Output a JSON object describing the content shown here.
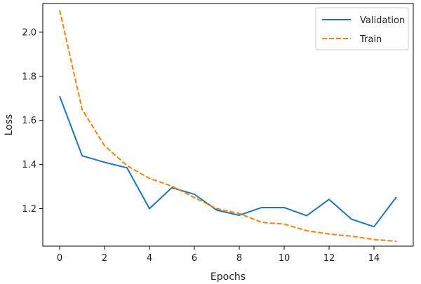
{
  "chart_data": {
    "type": "line",
    "title": "",
    "xlabel": "Epochs",
    "ylabel": "Loss",
    "xlim": [
      -0.75,
      15.75
    ],
    "ylim": [
      1.03,
      2.13
    ],
    "xticks": [
      0,
      2,
      4,
      6,
      8,
      10,
      12,
      14
    ],
    "yticks": [
      1.2,
      1.4,
      1.6,
      1.8,
      2.0
    ],
    "xtick_labels": [
      "0",
      "2",
      "4",
      "6",
      "8",
      "10",
      "12",
      "14"
    ],
    "ytick_labels": [
      "1.2",
      "1.4",
      "1.6",
      "1.8",
      "2.0"
    ],
    "grid": false,
    "legend_position": "top-right",
    "x": [
      0,
      1,
      2,
      3,
      4,
      5,
      6,
      7,
      8,
      9,
      10,
      11,
      12,
      13,
      14,
      15
    ],
    "series": [
      {
        "name": "Validation",
        "color": "#1f77b4",
        "style": "solid",
        "values": [
          1.71,
          1.44,
          1.41,
          1.385,
          1.2,
          1.295,
          1.265,
          1.193,
          1.17,
          1.205,
          1.205,
          1.168,
          1.242,
          1.152,
          1.118,
          1.253
        ]
      },
      {
        "name": "Train",
        "color": "#ff7f0e",
        "style": "dashed",
        "values": [
          2.1,
          1.65,
          1.485,
          1.395,
          1.337,
          1.302,
          1.25,
          1.2,
          1.178,
          1.138,
          1.13,
          1.1,
          1.085,
          1.075,
          1.06,
          1.052
        ]
      }
    ]
  }
}
